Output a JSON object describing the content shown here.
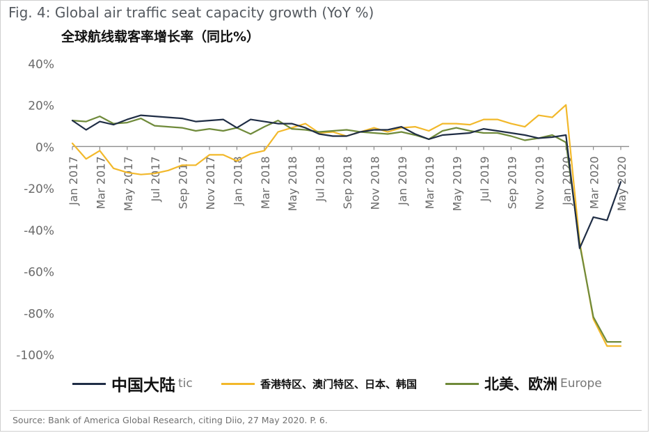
{
  "figure": {
    "title_en": "Fig. 4: Global air traffic seat capacity growth (YoY %)",
    "title_cn": "全球航线载客率增长率（同比%）",
    "source": "Source: Bank of America Global Research, citing Diio, 27 May 2020. P. 6."
  },
  "legend": [
    {
      "series": "china",
      "cn": "中国大陆",
      "en": "tic",
      "color": "#1f2d45"
    },
    {
      "series": "hk_macau_japan_korea",
      "cn": "香港特区、澳门特区、日本、韩国",
      "en": "",
      "color": "#f2b82a"
    },
    {
      "series": "na_europe",
      "cn": "北美、欧洲",
      "en": "Europe",
      "color": "#6f8a3a"
    }
  ],
  "chart_data": {
    "type": "line",
    "title": "Global air traffic seat capacity growth (YoY %)",
    "xlabel": "",
    "ylabel": "",
    "ylim": [
      -100,
      40
    ],
    "yticks": [
      40,
      20,
      0,
      -20,
      -40,
      -60,
      -80,
      -100
    ],
    "ytick_labels": [
      "40%",
      "20%",
      "0%",
      "-20%",
      "-40%",
      "-60%",
      "-80%",
      "-100%"
    ],
    "grid": false,
    "xtick_labels": [
      "Jan 2017",
      "Mar 2017",
      "May 2017",
      "Jul 2017",
      "Sep 2017",
      "Nov 2017",
      "Jan 2018",
      "Mar 2018",
      "May 2018",
      "Jul 2018",
      "Sep 2018",
      "Nov 2018",
      "Jan 2019",
      "Mar 2019",
      "May 2019",
      "Jul 2019",
      "Sep 2019",
      "Nov 2019",
      "Jan 2020",
      "Mar 2020",
      "May 2020"
    ],
    "categories": [
      "Jan 2017",
      "Feb 2017",
      "Mar 2017",
      "Apr 2017",
      "May 2017",
      "Jun 2017",
      "Jul 2017",
      "Aug 2017",
      "Sep 2017",
      "Oct 2017",
      "Nov 2017",
      "Dec 2017",
      "Jan 2018",
      "Feb 2018",
      "Mar 2018",
      "Apr 2018",
      "May 2018",
      "Jun 2018",
      "Jul 2018",
      "Aug 2018",
      "Sep 2018",
      "Oct 2018",
      "Nov 2018",
      "Dec 2018",
      "Jan 2019",
      "Feb 2019",
      "Mar 2019",
      "Apr 2019",
      "May 2019",
      "Jun 2019",
      "Jul 2019",
      "Aug 2019",
      "Sep 2019",
      "Oct 2019",
      "Nov 2019",
      "Dec 2019",
      "Jan 2020",
      "Feb 2020",
      "Mar 2020",
      "Apr 2020",
      "May 2020"
    ],
    "series": [
      {
        "key": "china",
        "name": "中国大陆",
        "color": "#1f2d45",
        "values": [
          12.5,
          8,
          12,
          10.5,
          13,
          15,
          14.5,
          14,
          13.5,
          12,
          12.5,
          13,
          9,
          13,
          12,
          11,
          11,
          9,
          6,
          5,
          5,
          7,
          8,
          8,
          9.5,
          6,
          3.5,
          5.5,
          6,
          6.5,
          8.5,
          7.5,
          6.5,
          5.5,
          4,
          4.5,
          5.5,
          -49,
          -34,
          -35.5,
          -17
        ]
      },
      {
        "key": "hk_macau_japan_korea",
        "name": "香港特区、澳门特区、日本、韩国",
        "color": "#f2b82a",
        "values": [
          1.5,
          -6,
          -2,
          -10.5,
          -12.5,
          -13.5,
          -13,
          -11.5,
          -9,
          -9,
          -4,
          -4,
          -7,
          -3.5,
          -2,
          7,
          9,
          11,
          6.5,
          7,
          5,
          7,
          9,
          7,
          9,
          9.5,
          7.5,
          11,
          11,
          10.5,
          13,
          13,
          11,
          9.5,
          15,
          14,
          20,
          -46,
          -83,
          -96,
          -96
        ]
      },
      {
        "key": "na_europe",
        "name": "北美、欧洲",
        "color": "#6f8a3a",
        "values": [
          12.5,
          12,
          14.5,
          11,
          11.5,
          13.5,
          10,
          9.5,
          9,
          7.5,
          8.5,
          7.5,
          9,
          6,
          9.5,
          12.5,
          8.5,
          8,
          7,
          7.5,
          8,
          7,
          6.5,
          6,
          7,
          5.5,
          3.5,
          7.5,
          9,
          7.5,
          6.5,
          6.5,
          5,
          3,
          4,
          5.5,
          2,
          -47,
          -82,
          -94,
          -94
        ]
      }
    ]
  }
}
